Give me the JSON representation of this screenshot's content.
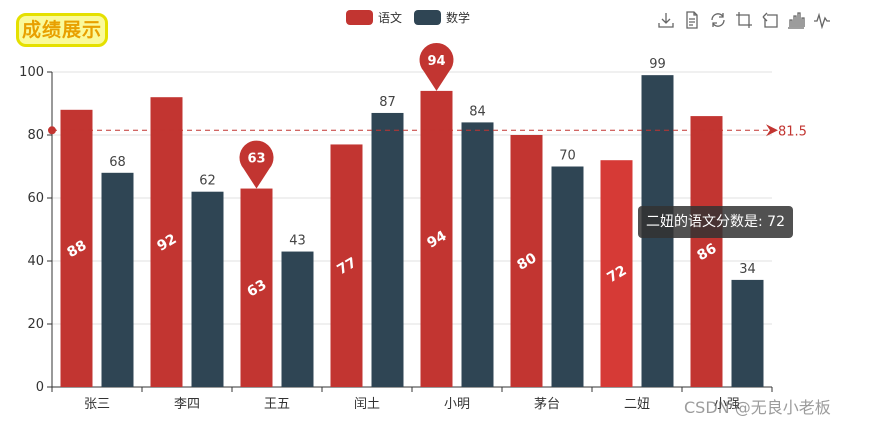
{
  "title_badge": "成绩展示",
  "legend": [
    {
      "name": "语文",
      "color": "#c23531"
    },
    {
      "name": "数学",
      "color": "#2f4554"
    }
  ],
  "toolbox_icons": [
    "download-icon",
    "data-view-icon",
    "refresh-icon",
    "crop-icon",
    "undo-zoom-icon",
    "bar-chart-icon",
    "line-chart-icon"
  ],
  "tooltip_text": "二妞的语文分数是: 72",
  "watermark": "CSDN @无良小老板",
  "chart_data": {
    "type": "bar",
    "categories": [
      "张三",
      "李四",
      "王五",
      "闰土",
      "小明",
      "茅台",
      "二妞",
      "小强"
    ],
    "series": [
      {
        "name": "语文",
        "values": [
          88,
          92,
          63,
          77,
          94,
          80,
          72,
          86
        ],
        "color": "#c23531"
      },
      {
        "name": "数学",
        "values": [
          68,
          62,
          43,
          87,
          84,
          70,
          99,
          34
        ],
        "color": "#2f4554"
      }
    ],
    "ylim": [
      0,
      100
    ],
    "yticks": [
      0,
      20,
      40,
      60,
      80,
      100
    ],
    "mark_point": {
      "value": 94,
      "category": "小明"
    },
    "mark_point_min": {
      "value": 63,
      "category": "王五"
    },
    "mark_line": {
      "value": 81.5,
      "label": "81.5"
    },
    "highlighted": {
      "series": "语文",
      "category": "二妞",
      "color": "#d63a36"
    },
    "grid_lines": true,
    "legend_position": "top-center"
  }
}
